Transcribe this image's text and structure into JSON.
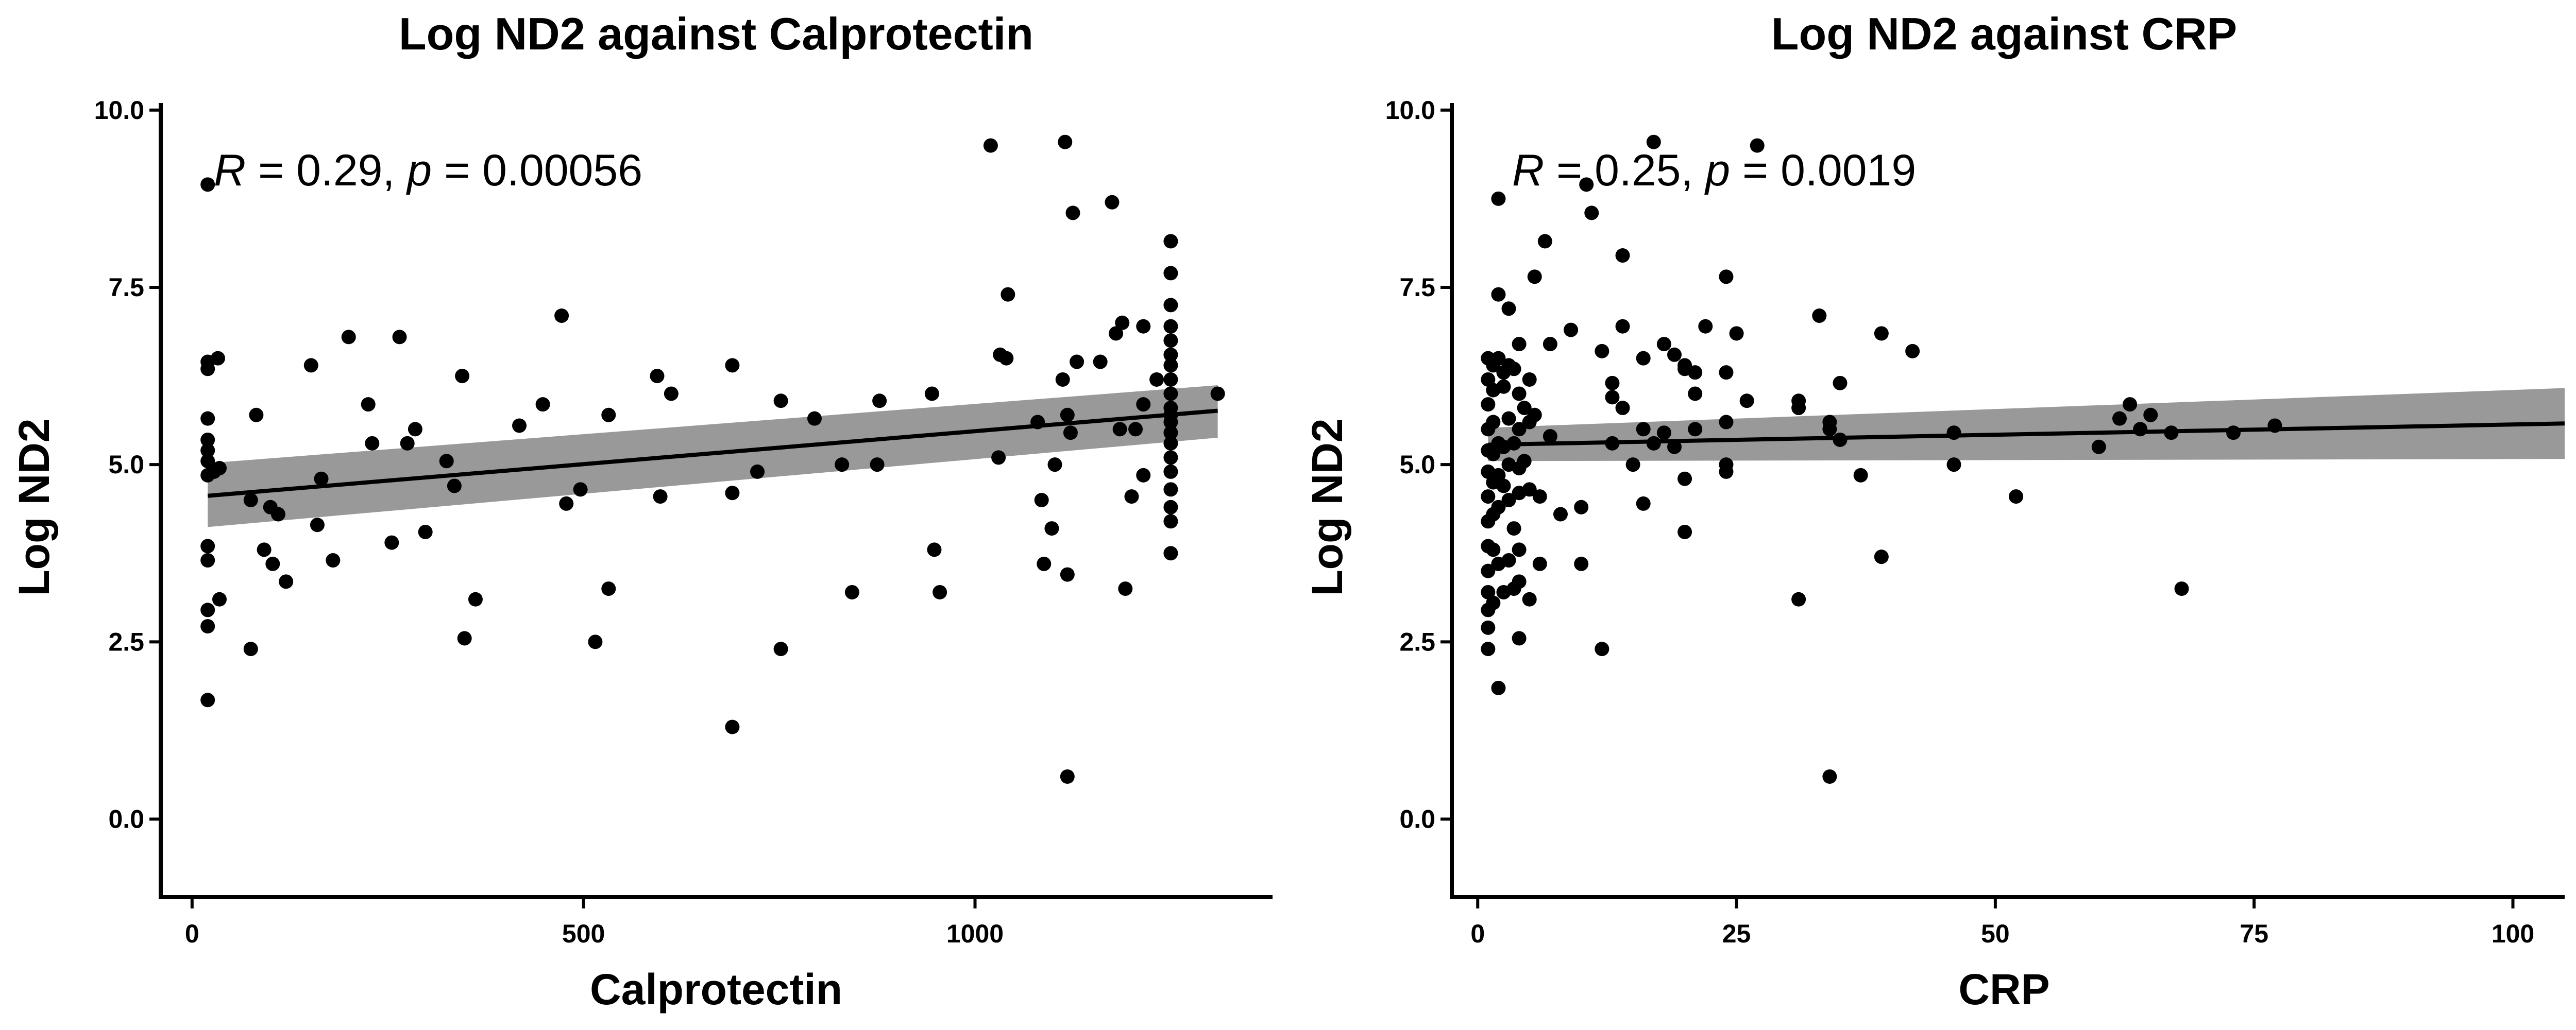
{
  "chart_data": [
    {
      "type": "scatter",
      "title": "Log ND2 against Calprotectin",
      "xlabel": "Calprotectin",
      "ylabel": "Log ND2",
      "xlim": [
        -40,
        1380
      ],
      "ylim": [
        -1.1,
        10.1
      ],
      "x_ticks": [
        0,
        500,
        1000
      ],
      "x_tick_labels": [
        "0",
        "500",
        "1000"
      ],
      "y_ticks": [
        0,
        2.5,
        5,
        7.5,
        10
      ],
      "y_tick_labels": [
        "0.0",
        "2.5",
        "5.0",
        "7.5",
        "10.0"
      ],
      "grid": false,
      "annotation": {
        "r_label": "R",
        "r_text": " = 0.29, ",
        "p_label": "p",
        "p_text": " = 0.00056"
      },
      "regression": {
        "x_start": 20,
        "x_end": 1310,
        "y_start": 4.56,
        "y_end": 5.76,
        "ci_low_start": 4.12,
        "ci_high_start": 5.02,
        "ci_low_end": 5.38,
        "ci_high_end": 6.12
      },
      "colors": {
        "points": "#000000",
        "line": "#000000",
        "band": "#999999"
      },
      "points": [
        [
          20,
          8.95
        ],
        [
          20,
          6.45
        ],
        [
          20,
          6.35
        ],
        [
          20,
          5.65
        ],
        [
          20,
          5.35
        ],
        [
          20,
          5.2
        ],
        [
          20,
          5.05
        ],
        [
          20,
          4.85
        ],
        [
          20,
          3.85
        ],
        [
          20,
          3.65
        ],
        [
          20,
          2.95
        ],
        [
          20,
          2.72
        ],
        [
          20,
          1.68
        ],
        [
          28,
          4.9
        ],
        [
          35,
          4.95
        ],
        [
          33,
          6.5
        ],
        [
          35,
          3.1
        ],
        [
          75,
          4.5
        ],
        [
          82,
          5.7
        ],
        [
          92,
          3.8
        ],
        [
          100,
          4.4
        ],
        [
          103,
          3.6
        ],
        [
          110,
          4.3
        ],
        [
          120,
          3.35
        ],
        [
          75,
          2.4
        ],
        [
          152,
          6.4
        ],
        [
          165,
          4.8
        ],
        [
          160,
          4.15
        ],
        [
          180,
          3.65
        ],
        [
          200,
          6.8
        ],
        [
          225,
          5.85
        ],
        [
          230,
          5.3
        ],
        [
          255,
          3.9
        ],
        [
          265,
          6.8
        ],
        [
          275,
          5.3
        ],
        [
          285,
          5.5
        ],
        [
          298,
          4.05
        ],
        [
          325,
          5.05
        ],
        [
          335,
          4.7
        ],
        [
          345,
          6.25
        ],
        [
          348,
          2.55
        ],
        [
          362,
          3.1
        ],
        [
          418,
          5.55
        ],
        [
          448,
          5.85
        ],
        [
          472,
          7.1
        ],
        [
          478,
          4.45
        ],
        [
          496,
          4.65
        ],
        [
          515,
          2.5
        ],
        [
          532,
          5.7
        ],
        [
          532,
          3.25
        ],
        [
          594,
          6.25
        ],
        [
          598,
          4.55
        ],
        [
          612,
          6.0
        ],
        [
          690,
          4.6
        ],
        [
          690,
          6.4
        ],
        [
          690,
          1.3
        ],
        [
          722,
          4.9
        ],
        [
          752,
          5.9
        ],
        [
          752,
          2.4
        ],
        [
          795,
          5.65
        ],
        [
          830,
          5.0
        ],
        [
          843,
          3.2
        ],
        [
          878,
          5.9
        ],
        [
          875,
          5.0
        ],
        [
          945,
          6.0
        ],
        [
          948,
          3.8
        ],
        [
          955,
          3.2
        ],
        [
          1030,
          5.1
        ],
        [
          1032,
          6.55
        ],
        [
          1040,
          6.5
        ],
        [
          1042,
          7.4
        ],
        [
          1020,
          9.5
        ],
        [
          1080,
          5.6
        ],
        [
          1085,
          4.5
        ],
        [
          1088,
          3.6
        ],
        [
          1098,
          4.1
        ],
        [
          1102,
          5.0
        ],
        [
          1115,
          9.55
        ],
        [
          1125,
          8.55
        ],
        [
          1112,
          6.2
        ],
        [
          1118,
          5.7
        ],
        [
          1122,
          5.45
        ],
        [
          1118,
          3.45
        ],
        [
          1118,
          0.6
        ],
        [
          1130,
          6.45
        ],
        [
          1160,
          6.45
        ],
        [
          1175,
          8.7
        ],
        [
          1180,
          6.85
        ],
        [
          1188,
          7.0
        ],
        [
          1185,
          5.5
        ],
        [
          1192,
          3.25
        ],
        [
          1205,
          5.5
        ],
        [
          1215,
          6.95
        ],
        [
          1200,
          4.55
        ],
        [
          1215,
          4.85
        ],
        [
          1215,
          5.85
        ],
        [
          1232,
          6.2
        ],
        [
          1250,
          8.15
        ],
        [
          1250,
          7.7
        ],
        [
          1250,
          7.25
        ],
        [
          1250,
          6.95
        ],
        [
          1250,
          6.75
        ],
        [
          1250,
          6.55
        ],
        [
          1250,
          6.4
        ],
        [
          1250,
          6.2
        ],
        [
          1250,
          6.0
        ],
        [
          1250,
          5.8
        ],
        [
          1250,
          5.7
        ],
        [
          1250,
          5.6
        ],
        [
          1250,
          5.45
        ],
        [
          1250,
          5.3
        ],
        [
          1250,
          5.1
        ],
        [
          1250,
          4.9
        ],
        [
          1250,
          4.65
        ],
        [
          1250,
          4.4
        ],
        [
          1250,
          4.2
        ],
        [
          1250,
          3.75
        ],
        [
          1310,
          6.0
        ]
      ]
    },
    {
      "type": "scatter",
      "title": "Log ND2 against CRP",
      "xlabel": "CRP",
      "ylabel": "Log ND2",
      "xlim": [
        -2.5,
        105
      ],
      "ylim": [
        -1.1,
        10.1
      ],
      "x_ticks": [
        0,
        25,
        50,
        75,
        100
      ],
      "x_tick_labels": [
        "0",
        "25",
        "50",
        "75",
        "100"
      ],
      "y_ticks": [
        0,
        2.5,
        5,
        7.5,
        10
      ],
      "y_tick_labels": [
        "0.0",
        "2.5",
        "5.0",
        "7.5",
        "10.0"
      ],
      "grid": false,
      "annotation": {
        "r_label": "R",
        "r_text": " = 0.25, ",
        "p_label": "p",
        "p_text": " = 0.0019"
      },
      "regression": {
        "x_start": 1,
        "x_end": 105,
        "y_start": 5.28,
        "y_end": 5.58,
        "ci_low_start": 5.05,
        "ci_high_start": 5.52,
        "ci_low_end": 5.08,
        "ci_high_end": 6.08
      },
      "colors": {
        "points": "#000000",
        "line": "#000000",
        "band": "#999999"
      },
      "points": [
        [
          1,
          6.5
        ],
        [
          1,
          6.2
        ],
        [
          1,
          5.85
        ],
        [
          1,
          5.5
        ],
        [
          1,
          5.2
        ],
        [
          1,
          4.9
        ],
        [
          1,
          4.55
        ],
        [
          1,
          4.2
        ],
        [
          1,
          3.85
        ],
        [
          1,
          3.5
        ],
        [
          1,
          3.2
        ],
        [
          1,
          2.95
        ],
        [
          1,
          2.7
        ],
        [
          1,
          2.4
        ],
        [
          1.5,
          6.4
        ],
        [
          1.5,
          6.05
        ],
        [
          1.5,
          5.6
        ],
        [
          1.5,
          5.15
        ],
        [
          1.5,
          4.75
        ],
        [
          1.5,
          4.3
        ],
        [
          1.5,
          3.8
        ],
        [
          1.5,
          3.05
        ],
        [
          2,
          8.75
        ],
        [
          2,
          7.4
        ],
        [
          2,
          6.5
        ],
        [
          2,
          5.3
        ],
        [
          2,
          4.85
        ],
        [
          2,
          4.4
        ],
        [
          2,
          3.6
        ],
        [
          2,
          1.85
        ],
        [
          2.5,
          6.3
        ],
        [
          2.5,
          6.1
        ],
        [
          2.5,
          5.25
        ],
        [
          2.5,
          4.7
        ],
        [
          2.5,
          3.2
        ],
        [
          3,
          7.2
        ],
        [
          3,
          6.4
        ],
        [
          3,
          5.65
        ],
        [
          3,
          5.0
        ],
        [
          3,
          4.5
        ],
        [
          3,
          3.65
        ],
        [
          3.5,
          6.35
        ],
        [
          3.5,
          5.3
        ],
        [
          3.5,
          4.1
        ],
        [
          3.5,
          3.25
        ],
        [
          4,
          6.7
        ],
        [
          4,
          6.0
        ],
        [
          4,
          5.5
        ],
        [
          4,
          4.95
        ],
        [
          4,
          4.6
        ],
        [
          4,
          3.8
        ],
        [
          4,
          3.35
        ],
        [
          4,
          2.55
        ],
        [
          4.5,
          5.8
        ],
        [
          4.5,
          5.05
        ],
        [
          5,
          6.2
        ],
        [
          5,
          5.6
        ],
        [
          5,
          4.65
        ],
        [
          5,
          3.1
        ],
        [
          5.5,
          7.65
        ],
        [
          5.5,
          5.7
        ],
        [
          6,
          4.55
        ],
        [
          6,
          3.6
        ],
        [
          6.5,
          8.15
        ],
        [
          7,
          6.7
        ],
        [
          7,
          5.4
        ],
        [
          8,
          4.3
        ],
        [
          9,
          6.9
        ],
        [
          10,
          4.4
        ],
        [
          10,
          3.6
        ],
        [
          10.5,
          8.95
        ],
        [
          11,
          8.55
        ],
        [
          12,
          6.6
        ],
        [
          12,
          2.4
        ],
        [
          13,
          5.95
        ],
        [
          13,
          6.15
        ],
        [
          13,
          5.3
        ],
        [
          14,
          7.95
        ],
        [
          14,
          6.95
        ],
        [
          14,
          5.8
        ],
        [
          15,
          5.0
        ],
        [
          16,
          6.5
        ],
        [
          16,
          4.45
        ],
        [
          16,
          5.5
        ],
        [
          17,
          9.55
        ],
        [
          17,
          5.3
        ],
        [
          18,
          6.7
        ],
        [
          18,
          5.45
        ],
        [
          19,
          6.55
        ],
        [
          19,
          5.25
        ],
        [
          20,
          6.4
        ],
        [
          20,
          6.35
        ],
        [
          20,
          4.8
        ],
        [
          20,
          4.05
        ],
        [
          21,
          6.3
        ],
        [
          21,
          6.0
        ],
        [
          21,
          5.5
        ],
        [
          22,
          6.95
        ],
        [
          24,
          7.65
        ],
        [
          24,
          6.3
        ],
        [
          24,
          5.6
        ],
        [
          24,
          5.0
        ],
        [
          24,
          4.9
        ],
        [
          25,
          6.85
        ],
        [
          26,
          5.9
        ],
        [
          27,
          9.5
        ],
        [
          31,
          5.9
        ],
        [
          31,
          5.8
        ],
        [
          31,
          3.1
        ],
        [
          33,
          7.1
        ],
        [
          34,
          5.6
        ],
        [
          34,
          5.5
        ],
        [
          34,
          0.6
        ],
        [
          35,
          6.15
        ],
        [
          35,
          5.35
        ],
        [
          37,
          4.85
        ],
        [
          39,
          6.85
        ],
        [
          39,
          3.7
        ],
        [
          42,
          6.6
        ],
        [
          46,
          5.45
        ],
        [
          46,
          5.0
        ],
        [
          52,
          4.55
        ],
        [
          60,
          5.25
        ],
        [
          62,
          5.65
        ],
        [
          63,
          5.85
        ],
        [
          64,
          5.5
        ],
        [
          65,
          5.7
        ],
        [
          67,
          5.45
        ],
        [
          68,
          3.25
        ],
        [
          73,
          5.45
        ],
        [
          77,
          5.55
        ]
      ]
    }
  ]
}
